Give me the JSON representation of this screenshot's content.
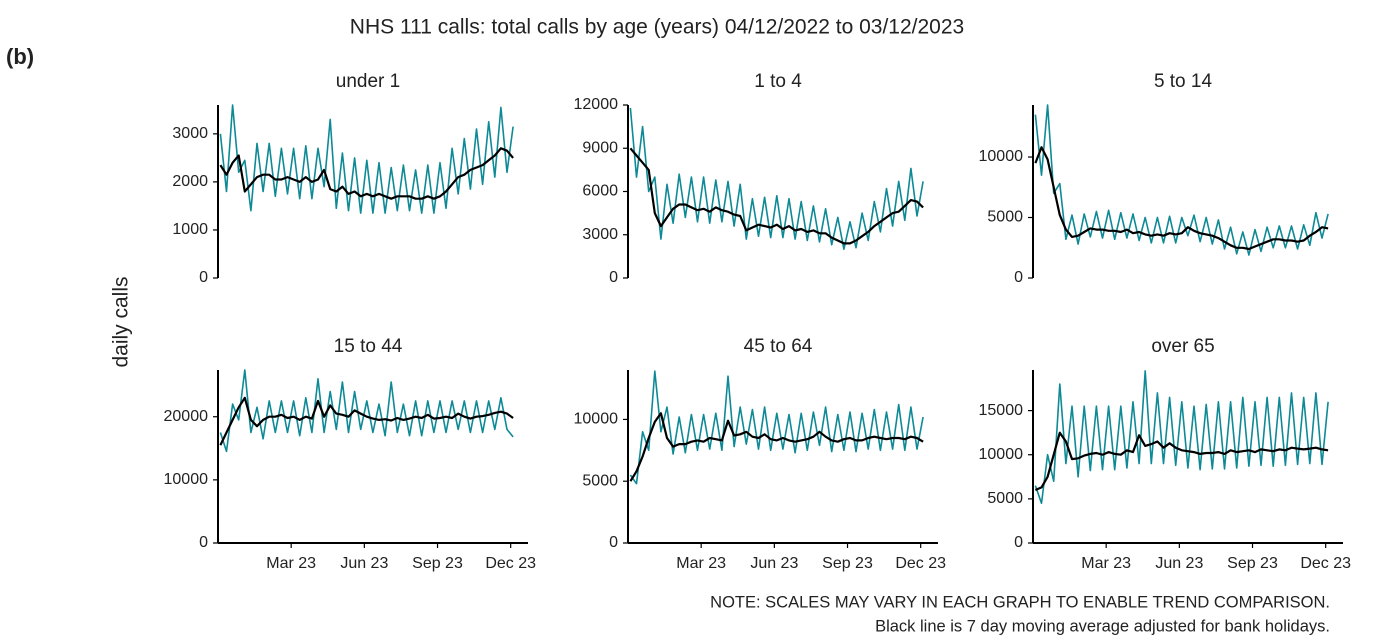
{
  "title": "NHS 111 calls: total calls by age (years) 04/12/2022 to 03/12/2023",
  "panel_label": "(b)",
  "ylabel": "daily calls",
  "notes": [
    "NOTE: SCALES MAY VARY IN EACH GRAPH TO ENABLE TREND COMPARISON.",
    "Black line is 7 day moving average adjusted for bank holidays."
  ],
  "chart_data": [
    {
      "type": "line",
      "title": "under 1",
      "xlim": [
        0,
        12.3
      ],
      "ylim": [
        0,
        3600
      ],
      "yticks": [
        0,
        1000,
        2000,
        3000
      ],
      "x": [
        0.1,
        0.35,
        0.6,
        0.85,
        1.1,
        1.35,
        1.6,
        1.85,
        2.1,
        2.35,
        2.6,
        2.85,
        3.1,
        3.35,
        3.6,
        3.85,
        4.1,
        4.35,
        4.6,
        4.85,
        5.1,
        5.35,
        5.6,
        5.85,
        6.1,
        6.35,
        6.6,
        6.85,
        7.1,
        7.35,
        7.6,
        7.85,
        8.1,
        8.35,
        8.6,
        8.85,
        9.1,
        9.35,
        9.6,
        9.85,
        10.1,
        10.35,
        10.6,
        10.85,
        11.1,
        11.35,
        11.6,
        11.85,
        12.1
      ],
      "series": [
        {
          "color": "#0e8a96",
          "values": [
            3000,
            1800,
            3600,
            2200,
            2450,
            1400,
            2800,
            1800,
            2800,
            1700,
            2700,
            1750,
            2700,
            1650,
            2750,
            1650,
            2700,
            1900,
            3300,
            1450,
            2600,
            1400,
            2500,
            1350,
            2450,
            1350,
            2400,
            1350,
            2300,
            1400,
            2350,
            1400,
            2250,
            1350,
            2350,
            1350,
            2400,
            1450,
            2700,
            1750,
            2900,
            1850,
            3100,
            1950,
            3250,
            2100,
            3550,
            2200,
            3150
          ]
        },
        {
          "color": "#000000",
          "values": [
            2350,
            2150,
            2400,
            2550,
            1800,
            1950,
            2100,
            2150,
            2150,
            2050,
            2050,
            2100,
            2050,
            2000,
            2100,
            2000,
            2050,
            2250,
            1850,
            1800,
            1900,
            1750,
            1800,
            1700,
            1750,
            1700,
            1750,
            1700,
            1650,
            1700,
            1700,
            1700,
            1650,
            1650,
            1700,
            1650,
            1700,
            1800,
            1950,
            2100,
            2150,
            2250,
            2300,
            2350,
            2450,
            2550,
            2700,
            2650,
            2500
          ]
        }
      ]
    },
    {
      "type": "line",
      "title": "1 to 4",
      "xlim": [
        0,
        12.3
      ],
      "ylim": [
        0,
        12000
      ],
      "yticks": [
        0,
        3000,
        6000,
        9000,
        12000
      ],
      "x": [
        0.1,
        0.35,
        0.6,
        0.85,
        1.1,
        1.35,
        1.6,
        1.85,
        2.1,
        2.35,
        2.6,
        2.85,
        3.1,
        3.35,
        3.6,
        3.85,
        4.1,
        4.35,
        4.6,
        4.85,
        5.1,
        5.35,
        5.6,
        5.85,
        6.1,
        6.35,
        6.6,
        6.85,
        7.1,
        7.35,
        7.6,
        7.85,
        8.1,
        8.35,
        8.6,
        8.85,
        9.1,
        9.35,
        9.6,
        9.85,
        10.1,
        10.35,
        10.6,
        10.85,
        11.1,
        11.35,
        11.6,
        11.85,
        12.1
      ],
      "series": [
        {
          "color": "#0e8a96",
          "values": [
            11800,
            7000,
            10500,
            6000,
            7000,
            2700,
            6500,
            3800,
            7200,
            4200,
            7000,
            3900,
            7000,
            3800,
            6800,
            3900,
            6700,
            3600,
            6500,
            2700,
            5500,
            2900,
            5600,
            2800,
            5700,
            2800,
            5500,
            2700,
            5300,
            2600,
            5000,
            2500,
            4800,
            2300,
            4200,
            2000,
            3900,
            2100,
            4500,
            2600,
            5300,
            3200,
            6200,
            3600,
            6700,
            4000,
            7600,
            4300,
            6700
          ]
        },
        {
          "color": "#000000",
          "values": [
            9000,
            8500,
            8000,
            7500,
            4500,
            3600,
            4200,
            4800,
            5100,
            5100,
            4900,
            4700,
            4800,
            4600,
            4900,
            4700,
            4600,
            4400,
            4300,
            3300,
            3500,
            3700,
            3600,
            3500,
            3700,
            3400,
            3600,
            3300,
            3400,
            3200,
            3300,
            3100,
            3100,
            2800,
            2600,
            2400,
            2400,
            2600,
            2900,
            3200,
            3600,
            3900,
            4200,
            4500,
            4600,
            5000,
            5400,
            5300,
            4900
          ]
        }
      ]
    },
    {
      "type": "line",
      "title": "5 to 14",
      "xlim": [
        0,
        12.3
      ],
      "ylim": [
        0,
        14300
      ],
      "yticks": [
        0,
        5000,
        10000
      ],
      "x": [
        0.1,
        0.35,
        0.6,
        0.85,
        1.1,
        1.35,
        1.6,
        1.85,
        2.1,
        2.35,
        2.6,
        2.85,
        3.1,
        3.35,
        3.6,
        3.85,
        4.1,
        4.35,
        4.6,
        4.85,
        5.1,
        5.35,
        5.6,
        5.85,
        6.1,
        6.35,
        6.6,
        6.85,
        7.1,
        7.35,
        7.6,
        7.85,
        8.1,
        8.35,
        8.6,
        8.85,
        9.1,
        9.35,
        9.6,
        9.85,
        10.1,
        10.35,
        10.6,
        10.85,
        11.1,
        11.35,
        11.6,
        11.85,
        12.1
      ],
      "series": [
        {
          "color": "#0e8a96",
          "values": [
            13500,
            8500,
            14300,
            7000,
            7800,
            3200,
            5200,
            2800,
            5300,
            3400,
            5500,
            3300,
            5600,
            3200,
            5400,
            3300,
            5300,
            3100,
            5000,
            2900,
            5000,
            2900,
            5100,
            2900,
            5000,
            3500,
            5200,
            3000,
            5000,
            2800,
            4800,
            2400,
            4200,
            2000,
            3800,
            1900,
            4000,
            2200,
            4200,
            2500,
            4300,
            2500,
            4300,
            2400,
            4400,
            2700,
            5400,
            3300,
            5300
          ]
        },
        {
          "color": "#000000",
          "values": [
            9500,
            10800,
            9800,
            7500,
            5200,
            4000,
            3400,
            3500,
            3800,
            4100,
            4000,
            4000,
            3900,
            3900,
            3800,
            4000,
            3700,
            3800,
            3600,
            3500,
            3600,
            3500,
            3700,
            3600,
            3700,
            4200,
            3900,
            3700,
            3600,
            3500,
            3300,
            3000,
            2700,
            2500,
            2500,
            2400,
            2600,
            2800,
            3000,
            3200,
            3200,
            3100,
            3100,
            3000,
            3100,
            3500,
            3800,
            4200,
            4100
          ]
        }
      ]
    },
    {
      "type": "line",
      "title": "15 to 44",
      "xlim": [
        0,
        12.3
      ],
      "ylim": [
        0,
        27400
      ],
      "yticks": [
        0,
        10000,
        20000
      ],
      "xticks": [
        {
          "value": 3,
          "label": "Mar 23"
        },
        {
          "value": 6,
          "label": "Jun 23"
        },
        {
          "value": 9,
          "label": "Sep 23"
        },
        {
          "value": 12,
          "label": "Dec 23"
        }
      ],
      "x": [
        0.1,
        0.35,
        0.6,
        0.85,
        1.1,
        1.35,
        1.6,
        1.85,
        2.1,
        2.35,
        2.6,
        2.85,
        3.1,
        3.35,
        3.6,
        3.85,
        4.1,
        4.35,
        4.6,
        4.85,
        5.1,
        5.35,
        5.6,
        5.85,
        6.1,
        6.35,
        6.6,
        6.85,
        7.1,
        7.35,
        7.6,
        7.85,
        8.1,
        8.35,
        8.6,
        8.85,
        9.1,
        9.35,
        9.6,
        9.85,
        10.1,
        10.35,
        10.6,
        10.85,
        11.1,
        11.35,
        11.6,
        11.85,
        12.1
      ],
      "series": [
        {
          "color": "#0e8a96",
          "values": [
            17500,
            14500,
            22000,
            19500,
            27400,
            17500,
            21500,
            16500,
            22500,
            17500,
            22500,
            17500,
            22500,
            17000,
            23000,
            17500,
            26000,
            17500,
            24000,
            18000,
            25500,
            17500,
            24000,
            18000,
            22500,
            17500,
            22000,
            17000,
            25500,
            17500,
            22000,
            17000,
            22500,
            17000,
            22500,
            17500,
            22500,
            17500,
            22500,
            18000,
            22500,
            17500,
            22500,
            17500,
            22500,
            18000,
            23000,
            18000,
            16800
          ]
        },
        {
          "color": "#000000",
          "values": [
            15500,
            17500,
            19500,
            21500,
            23000,
            19500,
            18500,
            19500,
            20000,
            20000,
            20300,
            19800,
            20000,
            19500,
            20000,
            19700,
            22500,
            20000,
            21800,
            20500,
            20300,
            20000,
            21000,
            20500,
            20000,
            19700,
            19500,
            19600,
            19400,
            19800,
            19500,
            19700,
            20000,
            19800,
            20300,
            19700,
            19800,
            20000,
            19800,
            20500,
            20000,
            19700,
            20000,
            20100,
            20300,
            20600,
            20800,
            20500,
            19800
          ]
        }
      ]
    },
    {
      "type": "line",
      "title": "45 to 64",
      "xlim": [
        0,
        12.3
      ],
      "ylim": [
        0,
        14000
      ],
      "yticks": [
        0,
        5000,
        10000
      ],
      "xticks": [
        {
          "value": 3,
          "label": "Mar 23"
        },
        {
          "value": 6,
          "label": "Jun 23"
        },
        {
          "value": 9,
          "label": "Sep 23"
        },
        {
          "value": 12,
          "label": "Dec 23"
        }
      ],
      "x": [
        0.1,
        0.35,
        0.6,
        0.85,
        1.1,
        1.35,
        1.6,
        1.85,
        2.1,
        2.35,
        2.6,
        2.85,
        3.1,
        3.35,
        3.6,
        3.85,
        4.1,
        4.35,
        4.6,
        4.85,
        5.1,
        5.35,
        5.6,
        5.85,
        6.1,
        6.35,
        6.6,
        6.85,
        7.1,
        7.35,
        7.6,
        7.85,
        8.1,
        8.35,
        8.6,
        8.85,
        9.1,
        9.35,
        9.6,
        9.85,
        10.1,
        10.35,
        10.6,
        10.85,
        11.1,
        11.35,
        11.6,
        11.85,
        12.1
      ],
      "series": [
        {
          "color": "#0e8a96",
          "values": [
            5500,
            4800,
            9000,
            7500,
            13900,
            9000,
            11000,
            7200,
            10200,
            7300,
            10400,
            7500,
            10400,
            7600,
            10500,
            7500,
            13500,
            7800,
            11000,
            8000,
            10800,
            7600,
            11000,
            7500,
            10500,
            7600,
            10400,
            7300,
            10500,
            7500,
            10600,
            7900,
            11000,
            7400,
            10400,
            7500,
            10600,
            7400,
            10500,
            7600,
            10800,
            7500,
            10600,
            7600,
            11200,
            7500,
            11000,
            7600,
            10200
          ]
        },
        {
          "color": "#000000",
          "values": [
            5000,
            5800,
            7000,
            8500,
            9800,
            10500,
            8500,
            7800,
            8000,
            8000,
            8200,
            8300,
            8200,
            8500,
            8400,
            8300,
            9900,
            8700,
            8800,
            9000,
            8600,
            8500,
            8800,
            8400,
            8300,
            8500,
            8300,
            8200,
            8300,
            8400,
            8600,
            9000,
            8600,
            8300,
            8200,
            8400,
            8500,
            8300,
            8300,
            8500,
            8600,
            8500,
            8400,
            8500,
            8500,
            8400,
            8600,
            8500,
            8200
          ]
        }
      ]
    },
    {
      "type": "line",
      "title": "over 65",
      "xlim": [
        0,
        12.3
      ],
      "ylim": [
        0,
        19600
      ],
      "yticks": [
        0,
        5000,
        10000,
        15000
      ],
      "xticks": [
        {
          "value": 3,
          "label": "Mar 23"
        },
        {
          "value": 6,
          "label": "Jun 23"
        },
        {
          "value": 9,
          "label": "Sep 23"
        },
        {
          "value": 12,
          "label": "Dec 23"
        }
      ],
      "x": [
        0.1,
        0.35,
        0.6,
        0.85,
        1.1,
        1.35,
        1.6,
        1.85,
        2.1,
        2.35,
        2.6,
        2.85,
        3.1,
        3.35,
        3.6,
        3.85,
        4.1,
        4.35,
        4.6,
        4.85,
        5.1,
        5.35,
        5.6,
        5.85,
        6.1,
        6.35,
        6.6,
        6.85,
        7.1,
        7.35,
        7.6,
        7.85,
        8.1,
        8.35,
        8.6,
        8.85,
        9.1,
        9.35,
        9.6,
        9.85,
        10.1,
        10.35,
        10.6,
        10.85,
        11.1,
        11.35,
        11.6,
        11.85,
        12.1
      ],
      "series": [
        {
          "color": "#0e8a96",
          "values": [
            6500,
            4500,
            10000,
            7000,
            18000,
            9000,
            15500,
            7500,
            15500,
            8200,
            15500,
            8300,
            15500,
            8300,
            15500,
            8500,
            16000,
            9000,
            19500,
            9000,
            17000,
            9000,
            16500,
            8800,
            16000,
            8500,
            15500,
            8300,
            15700,
            8400,
            16000,
            8400,
            16000,
            8500,
            16500,
            8700,
            16000,
            8800,
            16500,
            8700,
            16500,
            8800,
            17000,
            8900,
            16500,
            9000,
            17000,
            8900,
            16000
          ]
        },
        {
          "color": "#000000",
          "values": [
            6000,
            6300,
            7500,
            10000,
            12500,
            11500,
            9500,
            9600,
            9900,
            10100,
            10200,
            10000,
            10300,
            10100,
            10000,
            10500,
            10300,
            12200,
            11000,
            11200,
            11500,
            10800,
            11300,
            10800,
            10500,
            10400,
            10300,
            10100,
            10200,
            10200,
            10300,
            10100,
            10500,
            10300,
            10400,
            10500,
            10300,
            10600,
            10500,
            10400,
            10600,
            10500,
            10800,
            10700,
            10600,
            10700,
            10800,
            10600,
            10500
          ]
        }
      ]
    }
  ]
}
